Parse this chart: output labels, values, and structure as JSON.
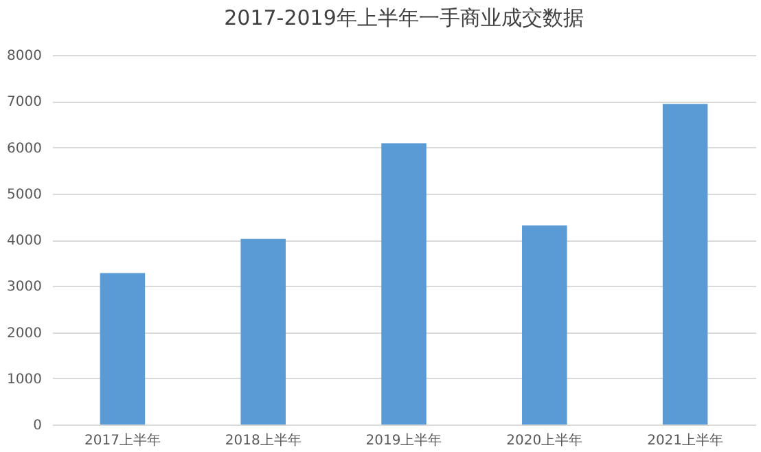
{
  "chart_data": {
    "type": "bar",
    "title": "2017-2019年上半年一手商业成交数据",
    "categories": [
      "2017上半年",
      "2018上半年",
      "2019上半年",
      "2020上半年",
      "2021上半年"
    ],
    "values": [
      3280,
      4020,
      6090,
      4310,
      6940
    ],
    "color": "#5b9bd5",
    "ylim": [
      0,
      8000
    ],
    "yticks": [
      0,
      1000,
      2000,
      3000,
      4000,
      5000,
      6000,
      7000,
      8000
    ],
    "grid": "y"
  }
}
